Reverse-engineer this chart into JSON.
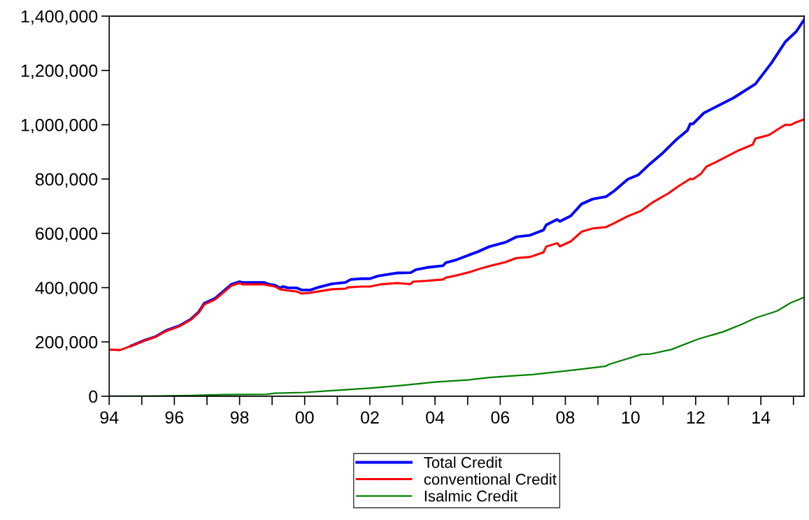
{
  "chart_data": {
    "type": "line",
    "xlim": [
      "1994-01",
      "2015-05"
    ],
    "xticks": [
      {
        "value": "1994",
        "label": "94"
      },
      {
        "value": "1996",
        "label": "96"
      },
      {
        "value": "1998",
        "label": "98"
      },
      {
        "value": "2000",
        "label": "00"
      },
      {
        "value": "2002",
        "label": "02"
      },
      {
        "value": "2004",
        "label": "04"
      },
      {
        "value": "2006",
        "label": "06"
      },
      {
        "value": "2008",
        "label": "08"
      },
      {
        "value": "2010",
        "label": "10"
      },
      {
        "value": "2012",
        "label": "12"
      },
      {
        "value": "2014",
        "label": "14"
      }
    ],
    "ylim": [
      0,
      1400000
    ],
    "yticks": [
      0,
      {
        "value": 200000,
        "label": "200,000"
      },
      {
        "value": 400000,
        "label": "400,000"
      },
      {
        "value": 600000,
        "label": "600,000"
      },
      {
        "value": 800000,
        "label": "800,000"
      },
      {
        "value": 1000000,
        "label": "1,000,000"
      },
      {
        "value": 1200000,
        "label": "1,200,000"
      },
      {
        "value": 1400000,
        "label": "1,400,000"
      }
    ],
    "grid": false,
    "legend": "bottom",
    "marker": "none",
    "line_style": "solid",
    "series": [
      {
        "name": "Total Credit",
        "color": "#0000ff",
        "x": [
          "1994-09",
          "1995-02",
          "1995-06",
          "1995-10",
          "1996-03",
          "1996-07",
          "1996-10",
          "1996-12",
          "1997-04",
          "1997-07",
          "1997-10",
          "1998-01",
          "1998-02",
          "1998-10",
          "1998-12",
          "1999-02",
          "1999-04",
          "1999-05",
          "1999-07",
          "1999-10",
          "1999-12",
          "2000-03",
          "2000-06",
          "2000-11",
          "2001-04",
          "2001-06",
          "2001-10",
          "2002-01",
          "2002-04",
          "2002-11",
          "2003-04",
          "2003-06",
          "2003-10",
          "2004-04",
          "2004-05",
          "2004-09",
          "2005-02",
          "2005-05",
          "2005-09",
          "2006-03",
          "2006-07",
          "2006-12",
          "2007-05",
          "2007-06",
          "2007-10",
          "2007-11",
          "2008-03",
          "2008-07",
          "2008-11",
          "2009-04",
          "2009-07",
          "2009-12",
          "2010-04",
          "2010-08",
          "2011-01",
          "2011-06",
          "2011-10",
          "2011-11",
          "2011-12",
          "2012-04",
          "2013-03",
          "2013-11",
          "2014-05",
          "2014-10",
          "2015-02",
          "2015-05"
        ],
        "values": [
          185000,
          206000,
          219000,
          242000,
          260000,
          283000,
          311000,
          342000,
          360000,
          386000,
          412000,
          422000,
          419000,
          419000,
          412000,
          409000,
          399000,
          404000,
          399000,
          399000,
          391000,
          391000,
          401000,
          414000,
          419000,
          430000,
          433000,
          433000,
          443000,
          454000,
          455000,
          466000,
          474000,
          481000,
          492000,
          503000,
          522000,
          533000,
          551000,
          567000,
          587000,
          593000,
          612000,
          631000,
          651000,
          644000,
          664000,
          708000,
          726000,
          735000,
          756000,
          799000,
          816000,
          854000,
          897000,
          946000,
          979000,
          1003000,
          1003000,
          1043000,
          1099000,
          1150000,
          1228000,
          1305000,
          1343000,
          1387000
        ]
      },
      {
        "name": "conventional Credit",
        "color": "#ff0000",
        "x": [
          "1994-01",
          "1994-05",
          "1994-09",
          "1995-02",
          "1995-06",
          "1995-10",
          "1996-03",
          "1996-07",
          "1996-10",
          "1996-12",
          "1997-04",
          "1997-07",
          "1997-10",
          "1998-01",
          "1998-02",
          "1998-10",
          "1999-02",
          "1999-04",
          "1999-07",
          "1999-10",
          "1999-12",
          "2000-03",
          "2000-06",
          "2000-11",
          "2001-04",
          "2001-05",
          "2001-10",
          "2002-01",
          "2002-05",
          "2002-11",
          "2003-04",
          "2003-05",
          "2003-10",
          "2004-04",
          "2004-05",
          "2004-09",
          "2005-02",
          "2005-05",
          "2005-09",
          "2006-03",
          "2006-07",
          "2006-12",
          "2007-05",
          "2007-06",
          "2007-10",
          "2007-11",
          "2008-03",
          "2008-07",
          "2008-11",
          "2009-04",
          "2009-07",
          "2009-12",
          "2010-05",
          "2010-09",
          "2011-03",
          "2011-06",
          "2011-11",
          "2011-12",
          "2012-03",
          "2012-05",
          "2012-08",
          "2013-05",
          "2013-10",
          "2013-11",
          "2014-04",
          "2014-07",
          "2014-10",
          "2014-12",
          "2015-02",
          "2015-05"
        ],
        "values": [
          172000,
          170000,
          185000,
          205000,
          218000,
          240000,
          258000,
          281000,
          308000,
          338000,
          356000,
          381000,
          407000,
          417000,
          412000,
          412000,
          404000,
          394000,
          389000,
          386000,
          378000,
          381000,
          386000,
          394000,
          396000,
          401000,
          404000,
          404000,
          412000,
          417000,
          413000,
          422000,
          425000,
          430000,
          437000,
          445000,
          458000,
          468000,
          479000,
          494000,
          509000,
          513000,
          530000,
          551000,
          564000,
          552000,
          570000,
          606000,
          618000,
          623000,
          637000,
          663000,
          683000,
          713000,
          747000,
          769000,
          801000,
          799000,
          820000,
          846000,
          860000,
          906000,
          927000,
          949000,
          962000,
          981000,
          1000000,
          999000,
          1009000,
          1020000
        ]
      },
      {
        "name": "Isalmic Credit",
        "color": "#008000",
        "x": [
          "1994-01",
          "1995-07",
          "1996-07",
          "1997-07",
          "1998-11",
          "1999-02",
          "2000-01",
          "2001-01",
          "2002-01",
          "2003-01",
          "2004-01",
          "2005-01",
          "2005-09",
          "2006-07",
          "2007-01",
          "2007-11",
          "2008-07",
          "2009-04",
          "2009-05",
          "2010-05",
          "2010-08",
          "2011-04",
          "2012-02",
          "2012-11",
          "2013-06",
          "2013-11",
          "2014-07",
          "2014-12",
          "2015-05"
        ],
        "values": [
          0,
          1000,
          3000,
          6000,
          7000,
          11000,
          14000,
          22000,
          30000,
          40000,
          52000,
          60000,
          69000,
          76000,
          80000,
          91000,
          100000,
          111000,
          117000,
          154000,
          155000,
          172000,
          211000,
          237000,
          265000,
          288000,
          314000,
          344000,
          364000
        ]
      }
    ]
  }
}
